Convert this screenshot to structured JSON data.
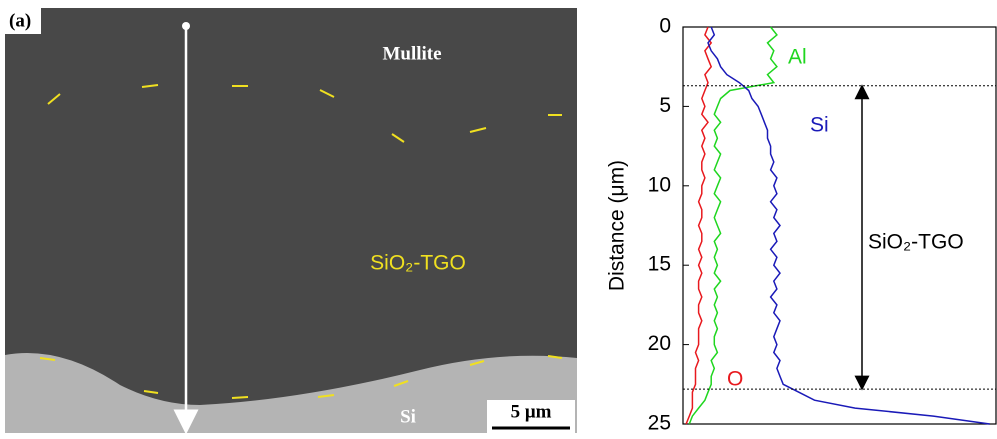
{
  "image": {
    "panel_label": "(a)",
    "top_label": "Mullite",
    "middle_label": "SiO₂-TGO",
    "bottom_label": "Si",
    "scale_bar": "5 μm"
  },
  "chart_data": {
    "type": "line",
    "x_label": "Distance (μm)",
    "x": [
      0,
      0.5,
      1,
      1.5,
      2,
      2.5,
      3,
      3.5,
      4,
      4.5,
      5,
      5.5,
      6,
      6.5,
      7,
      7.5,
      8,
      8.5,
      9,
      9.5,
      10,
      10.5,
      11,
      11.5,
      12,
      12.5,
      13,
      13.5,
      14,
      14.5,
      15,
      15.5,
      16,
      16.5,
      17,
      17.5,
      18,
      18.5,
      19,
      19.5,
      20,
      20.5,
      21,
      21.5,
      22,
      22.5,
      23,
      23.5,
      24,
      24.5,
      25
    ],
    "xlim": [
      0,
      25
    ],
    "xticks": [
      0,
      5,
      10,
      15,
      20,
      25
    ],
    "ylim": [
      0,
      100
    ],
    "series": [
      {
        "name": "O",
        "color": "#e8191e",
        "values": [
          8,
          7,
          9,
          7,
          8,
          9,
          7,
          8,
          7,
          6,
          7,
          6,
          8,
          6,
          7,
          6,
          7,
          6,
          6,
          7,
          6,
          6,
          5,
          6,
          6,
          5,
          6,
          6,
          5,
          6,
          5,
          6,
          5,
          5,
          6,
          5,
          5,
          6,
          5,
          5,
          5,
          4,
          5,
          4,
          4,
          4,
          3,
          3,
          3,
          2,
          1
        ]
      },
      {
        "name": "Al",
        "color": "#1fd61f",
        "values": [
          28,
          30,
          27,
          29,
          28,
          30,
          27,
          29,
          15,
          12,
          11,
          10,
          12,
          10,
          11,
          10,
          12,
          11,
          10,
          12,
          11,
          10,
          12,
          11,
          10,
          11,
          12,
          10,
          11,
          10,
          11,
          10,
          12,
          10,
          11,
          10,
          11,
          10,
          11,
          10,
          10,
          11,
          9,
          10,
          9,
          9,
          8,
          7,
          5,
          3,
          2
        ]
      },
      {
        "name": "Si",
        "color": "#1a1ab8",
        "values": [
          9,
          10,
          8,
          9,
          11,
          12,
          14,
          18,
          21,
          22,
          24,
          25,
          26,
          27,
          27,
          28,
          28,
          29,
          28,
          30,
          29,
          30,
          28,
          30,
          29,
          31,
          29,
          30,
          28,
          30,
          29,
          31,
          29,
          30,
          28,
          30,
          29,
          31,
          30,
          29,
          30,
          29,
          31,
          30,
          31,
          32,
          37,
          42,
          55,
          80,
          98
        ]
      }
    ],
    "reference_lines": [
      3.7,
      22.8
    ],
    "region_label": "SiO₂-TGO"
  }
}
